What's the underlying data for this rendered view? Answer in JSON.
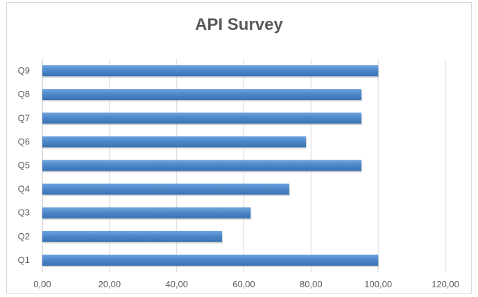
{
  "chart_data": {
    "type": "bar",
    "orientation": "horizontal",
    "title": "API Survey",
    "categories": [
      "Q1",
      "Q2",
      "Q3",
      "Q4",
      "Q5",
      "Q6",
      "Q7",
      "Q8",
      "Q9"
    ],
    "values": [
      100,
      53.5,
      62,
      73.5,
      95,
      78.5,
      95,
      95,
      100
    ],
    "x_ticks": [
      "0,00",
      "20,00",
      "40,00",
      "60,00",
      "80,00",
      "100,00",
      "120,00"
    ],
    "xlim": [
      0,
      120
    ],
    "grid": true,
    "bar_color": "#4a86c8",
    "xlabel": "",
    "ylabel": ""
  }
}
